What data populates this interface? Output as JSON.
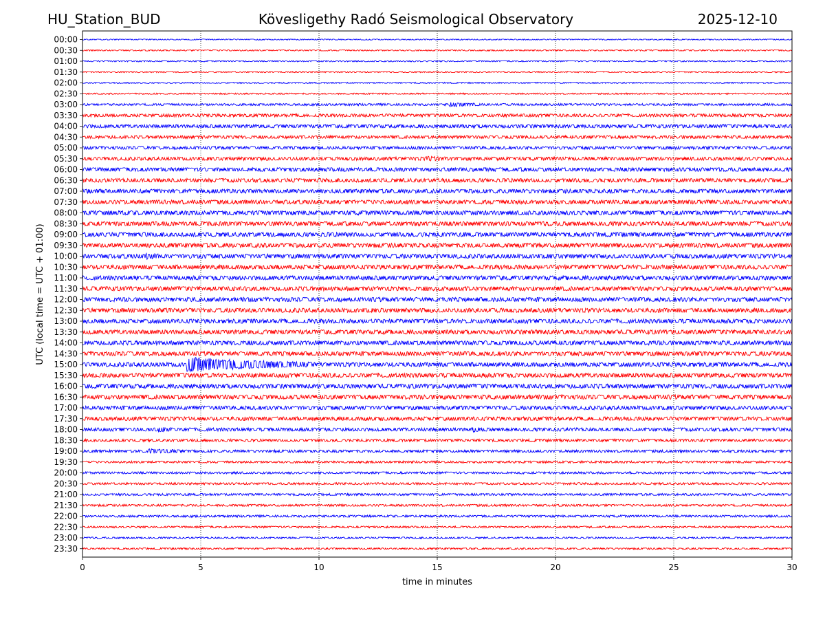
{
  "header": {
    "station": "HU_Station_BUD",
    "observatory": "Köveslige­thy Radó Seismological Observatory",
    "date": "2025-12-10"
  },
  "chart_data": {
    "type": "line",
    "title": "Köveslige­thy Radó Seismological Observatory",
    "xlabel": "time in minutes",
    "ylabel": "UTC (local time = UTC + 01:00)",
    "xlim": [
      0,
      30
    ],
    "xticks": [
      "0",
      "5",
      "10",
      "15",
      "20",
      "25",
      "30"
    ],
    "xtick_values": [
      0,
      5,
      10,
      15,
      20,
      25,
      30
    ],
    "grid": "vertical dotted",
    "series_colors": [
      "#0000ff",
      "#ff0000"
    ],
    "rows": [
      "00:00",
      "00:30",
      "01:00",
      "01:30",
      "02:00",
      "02:30",
      "03:00",
      "03:30",
      "04:00",
      "04:30",
      "05:00",
      "05:30",
      "06:00",
      "06:30",
      "07:00",
      "07:30",
      "08:00",
      "08:30",
      "09:00",
      "09:30",
      "10:00",
      "10:30",
      "11:00",
      "11:30",
      "12:00",
      "12:30",
      "13:00",
      "13:30",
      "14:00",
      "14:30",
      "15:00",
      "15:30",
      "16:00",
      "16:30",
      "17:00",
      "17:30",
      "18:00",
      "18:30",
      "19:00",
      "19:30",
      "20:00",
      "20:30",
      "21:00",
      "21:30",
      "22:00",
      "22:30",
      "23:00",
      "23:30"
    ],
    "noise_level": [
      0.25,
      0.3,
      0.3,
      0.3,
      0.3,
      0.35,
      0.5,
      0.7,
      0.8,
      0.7,
      0.7,
      0.8,
      0.9,
      0.9,
      0.95,
      0.95,
      1.0,
      1.0,
      1.0,
      1.0,
      1.0,
      1.0,
      1.0,
      1.0,
      1.0,
      1.0,
      1.0,
      1.0,
      1.0,
      1.0,
      1.0,
      1.0,
      1.0,
      1.0,
      0.9,
      0.9,
      0.8,
      0.6,
      0.6,
      0.5,
      0.5,
      0.5,
      0.5,
      0.5,
      0.5,
      0.45,
      0.4,
      0.4
    ],
    "events": [
      {
        "row": "03:00",
        "start_min": 15.5,
        "end_min": 17.0,
        "amplitude": 2.5
      },
      {
        "row": "05:30",
        "start_min": 14.5,
        "end_min": 15.5,
        "amplitude": 2.0
      },
      {
        "row": "10:00",
        "start_min": 2.7,
        "end_min": 3.3,
        "amplitude": 2.0
      },
      {
        "row": "15:00",
        "start_min": 4.4,
        "end_min": 9.8,
        "amplitude": 9.0
      },
      {
        "row": "18:00",
        "start_min": 3.2,
        "end_min": 3.8,
        "amplitude": 2.5
      },
      {
        "row": "18:00",
        "start_min": 16.5,
        "end_min": 17.0,
        "amplitude": 2.0
      },
      {
        "row": "19:00",
        "start_min": 2.8,
        "end_min": 4.8,
        "amplitude": 2.2
      }
    ]
  }
}
